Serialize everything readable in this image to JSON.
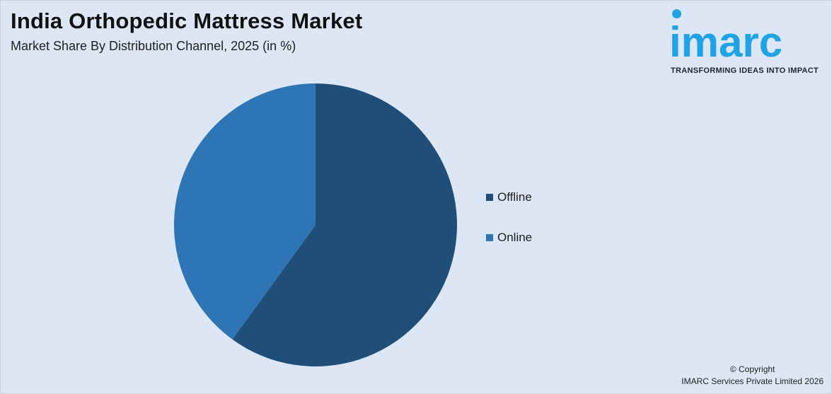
{
  "header": {
    "title": "India Orthopedic Mattress Market",
    "subtitle": "Market Share By Distribution Channel, 2025 (in %)"
  },
  "logo": {
    "wordmark": "imarc",
    "tagline": "TRANSFORMING IDEAS INTO IMPACT",
    "color": "#1ea3e6"
  },
  "chart_data": {
    "type": "pie",
    "title": "India Orthopedic Mattress Market",
    "subtitle": "Market Share By Distribution Channel, 2025 (in %)",
    "categories": [
      "Offline",
      "Online"
    ],
    "values": [
      60,
      40
    ],
    "colors": [
      "#1f4e79",
      "#2e75b6"
    ],
    "legend_position": "right"
  },
  "footer": {
    "copyright": "© Copyright",
    "company": "IMARC Services Private Limited 2026"
  }
}
